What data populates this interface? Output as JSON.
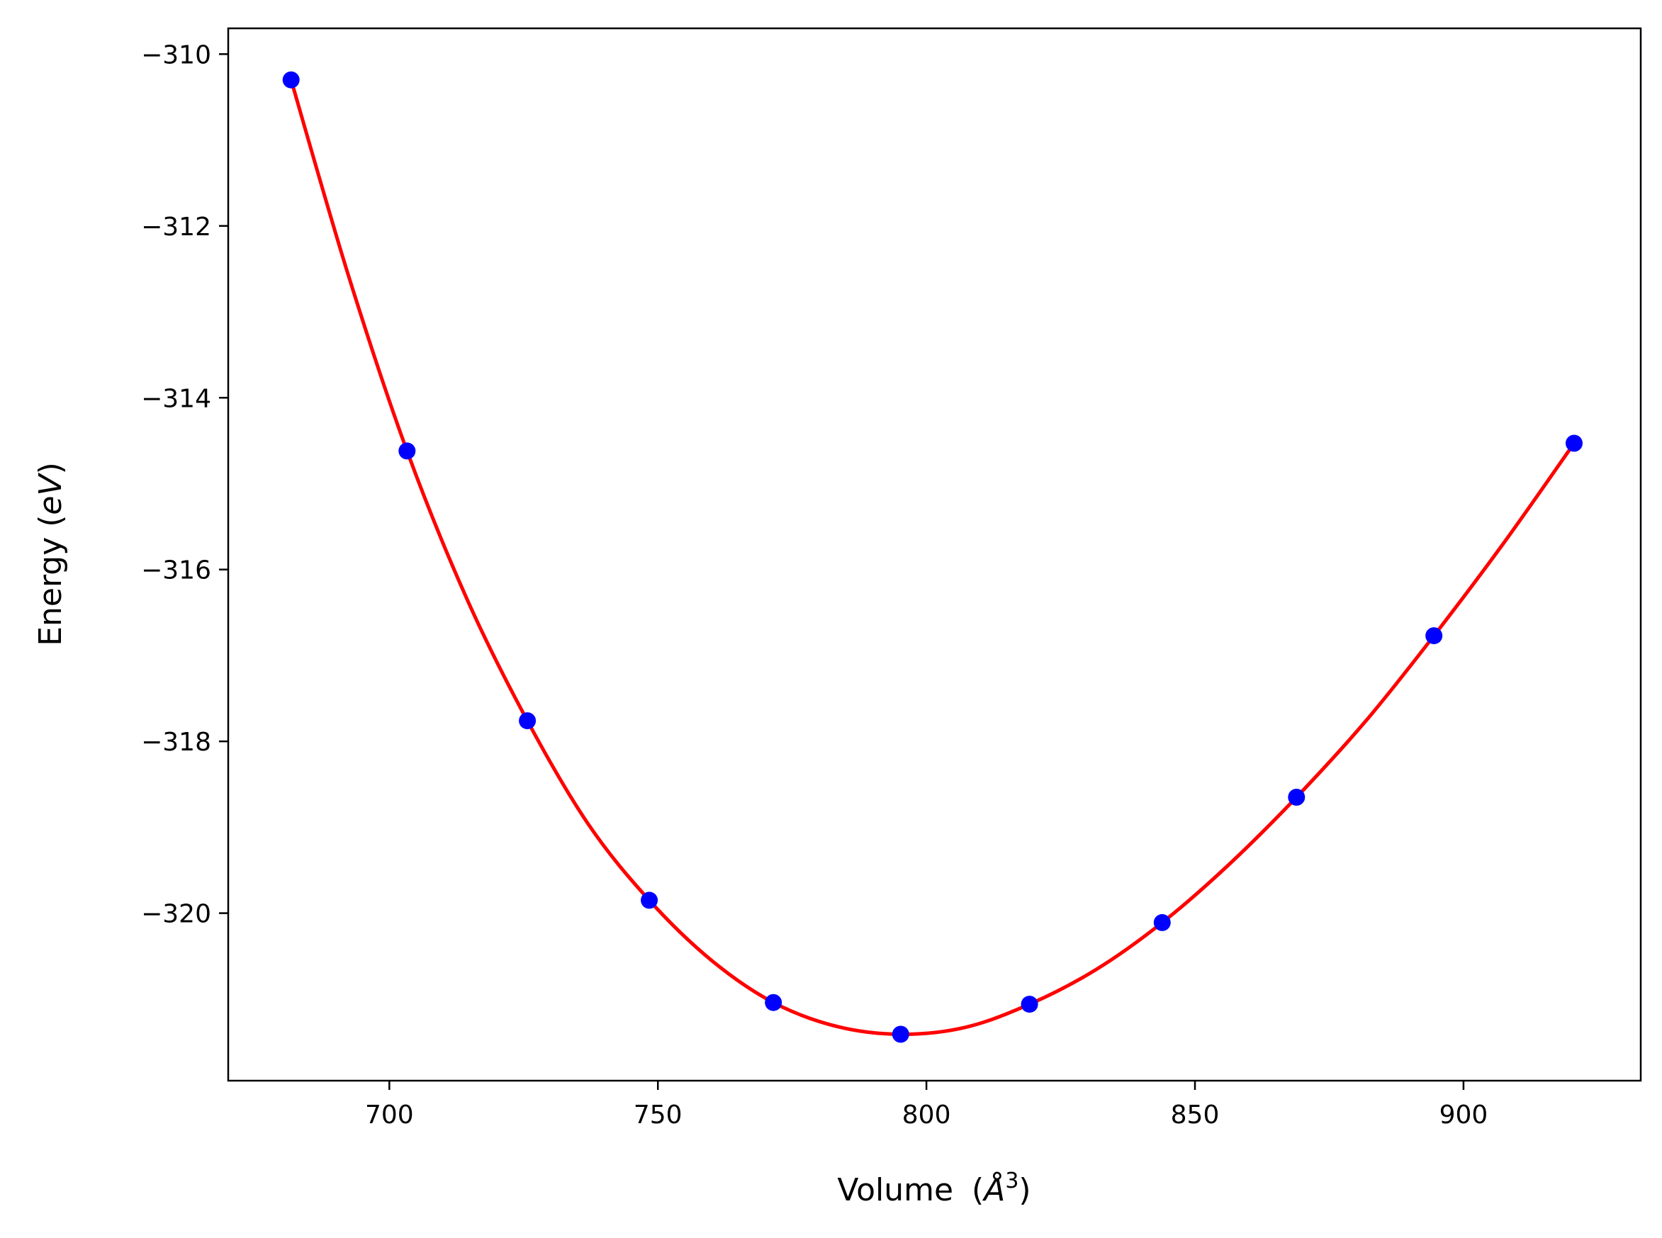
{
  "chart_data": {
    "type": "scatter",
    "title": "",
    "xlabel": "Volume",
    "xlabel_unit_text": "(",
    "xlabel_unit_symbol": "Å",
    "xlabel_unit_exp": "3",
    "xlabel_unit_close": ")",
    "ylabel_prefix": "Energy (",
    "ylabel_unit": "eV",
    "ylabel_suffix": ")",
    "xlim": [
      670,
      933
    ],
    "ylim": [
      -321.95,
      -309.7
    ],
    "xticks": [
      700,
      750,
      800,
      850,
      900
    ],
    "xtick_labels": [
      "700",
      "750",
      "800",
      "850",
      "900"
    ],
    "yticks": [
      -310,
      -312,
      -314,
      -316,
      -318,
      -320
    ],
    "ytick_labels": [
      "−310",
      "−312",
      "−314",
      "−316",
      "−318",
      "−320"
    ],
    "grid": false,
    "series": [
      {
        "kind": "points",
        "color": "#0000ff",
        "x": [
          681.7,
          703.3,
          725.7,
          748.4,
          771.5,
          795.2,
          819.2,
          843.9,
          868.9,
          894.5,
          920.6
        ],
        "y": [
          -310.3,
          -314.62,
          -317.76,
          -319.85,
          -321.04,
          -321.41,
          -321.06,
          -320.11,
          -318.65,
          -316.77,
          -314.53
        ]
      },
      {
        "kind": "fit-curve",
        "color": "#ff0000",
        "x": [
          681.7,
          692.5,
          703.3,
          714.5,
          725.7,
          737.0,
          748.4,
          760.0,
          771.5,
          783.4,
          795.2,
          807.2,
          819.2,
          831.5,
          843.9,
          856.4,
          868.9,
          881.7,
          894.5,
          907.5,
          920.6
        ],
        "y": [
          -310.3,
          -312.6,
          -314.62,
          -316.35,
          -317.76,
          -318.96,
          -319.85,
          -320.55,
          -321.04,
          -321.32,
          -321.41,
          -321.33,
          -321.06,
          -320.66,
          -320.11,
          -319.43,
          -318.65,
          -317.77,
          -316.77,
          -315.69,
          -314.53
        ]
      }
    ]
  }
}
